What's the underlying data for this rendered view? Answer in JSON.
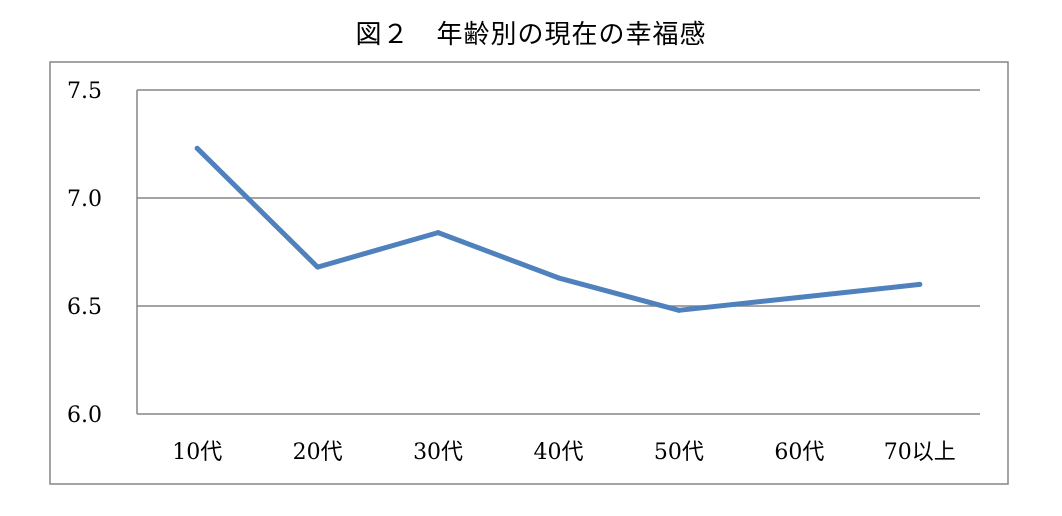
{
  "chart_data": {
    "type": "line",
    "title": "図２　年齢別の現在の幸福感",
    "categories": [
      "10代",
      "20代",
      "30代",
      "40代",
      "50代",
      "60代",
      "70以上"
    ],
    "series": [
      {
        "values": [
          7.23,
          6.68,
          6.84,
          6.63,
          6.48,
          6.54,
          6.6
        ]
      }
    ],
    "ylim": [
      6.0,
      7.5
    ],
    "yticks": [
      "6.0",
      "6.5",
      "7.0",
      "7.5"
    ],
    "ytick_values": [
      6.0,
      6.5,
      7.0,
      7.5
    ],
    "grid": true,
    "legend": "none",
    "line_color": "#4F81BD",
    "grid_color": "#868686",
    "frame_color": "#868686"
  }
}
